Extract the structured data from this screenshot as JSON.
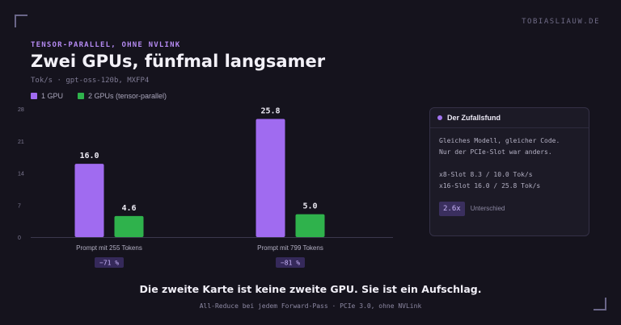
{
  "site": "TOBIASLIAUW.DE",
  "kicker": "TENSOR-PARALLEL, OHNE NVLINK",
  "colors": {
    "series1": "#a06bf0",
    "series2": "#2fb24c",
    "accent": "#a274ef"
  },
  "chart_data": {
    "type": "bar",
    "title": "Zwei GPUs, fünfmal langsamer",
    "subtitle": "Tok/s · gpt-oss-120b, MXFP4",
    "categories": [
      "Prompt mit 255 Tokens",
      "Prompt mit 799 Tokens"
    ],
    "series": [
      {
        "name": "1 GPU",
        "values": [
          16.0,
          25.8
        ],
        "labels": [
          "16.0",
          "25.8"
        ]
      },
      {
        "name": "2 GPUs (tensor-parallel)",
        "values": [
          4.6,
          5.0
        ],
        "labels": [
          "4.6",
          "5.0"
        ]
      }
    ],
    "deltas": [
      "−71 %",
      "−81 %"
    ],
    "yticks": [
      0,
      7,
      14,
      21,
      28
    ],
    "ylim": [
      0,
      28
    ],
    "grid": false,
    "legend": "top-left"
  },
  "callout": {
    "title": "Der Zufallsfund",
    "line1": "Gleiches Modell, gleicher Code.",
    "line2": "Nur der PCIe-Slot war anders.",
    "line3": "x8-Slot 8.3 / 10.0 Tok/s",
    "line4": "x16-Slot 16.0 / 25.8 Tok/s",
    "stat_value": "2.6x",
    "stat_label": "Unterschied"
  },
  "headline": "Die zweite Karte ist keine zweite GPU. Sie ist ein Aufschlag.",
  "footnote": "All-Reduce bei jedem Forward-Pass · PCIe 3.0, ohne NVLink"
}
